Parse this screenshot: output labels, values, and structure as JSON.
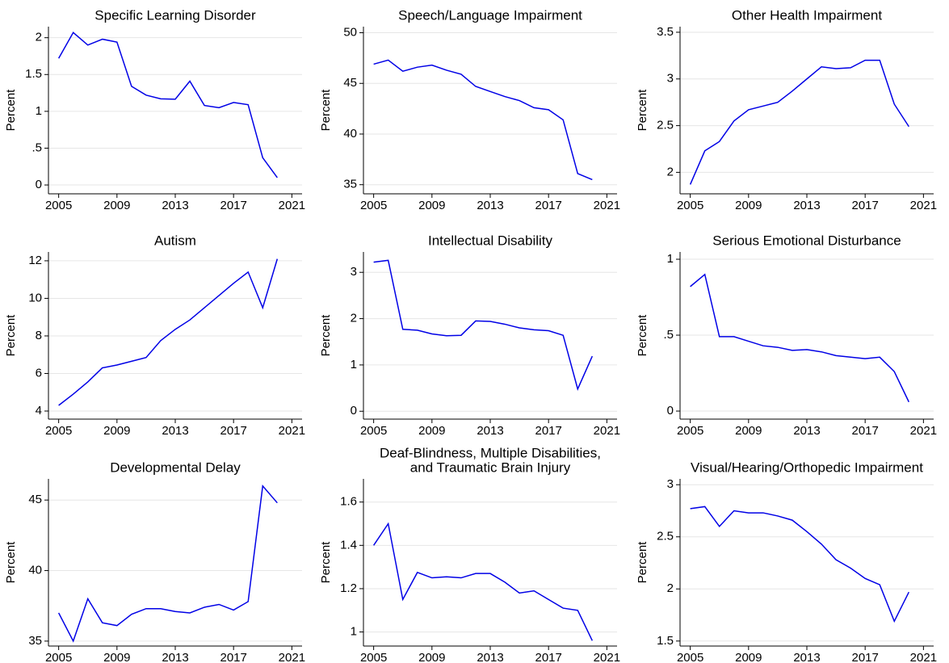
{
  "chart_data": [
    {
      "type": "line",
      "title": "Specific Learning Disorder",
      "ylabel": "Percent",
      "x": [
        2005,
        2006,
        2007,
        2008,
        2009,
        2010,
        2011,
        2012,
        2013,
        2014,
        2015,
        2016,
        2017,
        2018,
        2019,
        2020
      ],
      "series": [
        {
          "color": "#0000e6",
          "values": [
            1.72,
            2.07,
            1.9,
            1.98,
            1.94,
            1.34,
            1.22,
            1.17,
            1.165,
            1.41,
            1.08,
            1.05,
            1.12,
            1.09,
            0.37,
            0.1
          ]
        }
      ],
      "xlim": [
        2004.3,
        2021.7
      ],
      "xticks": [
        2005,
        2009,
        2013,
        2017,
        2021
      ],
      "ylim": [
        -0.12,
        2.15
      ],
      "yticks": [
        0,
        {
          "value": 0.5,
          "label": ".5"
        },
        1,
        1.5,
        2
      ],
      "grid": true
    },
    {
      "type": "line",
      "title": "Speech/Language Impairment",
      "ylabel": "Percent",
      "x": [
        2005,
        2006,
        2007,
        2008,
        2009,
        2010,
        2011,
        2012,
        2013,
        2014,
        2015,
        2016,
        2017,
        2018,
        2019,
        2020
      ],
      "series": [
        {
          "color": "#0000e6",
          "values": [
            46.9,
            47.3,
            46.2,
            46.6,
            46.8,
            46.3,
            45.9,
            44.7,
            44.2,
            43.7,
            43.3,
            42.6,
            42.4,
            41.4,
            36.1,
            35.5
          ]
        }
      ],
      "xlim": [
        2004.3,
        2021.7
      ],
      "xticks": [
        2005,
        2009,
        2013,
        2017,
        2021
      ],
      "ylim": [
        34.1,
        50.6
      ],
      "yticks": [
        35,
        40,
        45,
        50
      ],
      "grid": true
    },
    {
      "type": "line",
      "title": "Other Health Impairment",
      "ylabel": "Percent",
      "x": [
        2005,
        2006,
        2007,
        2008,
        2009,
        2010,
        2011,
        2012,
        2013,
        2014,
        2015,
        2016,
        2017,
        2018,
        2019,
        2020
      ],
      "series": [
        {
          "color": "#0000e6",
          "values": [
            1.87,
            2.23,
            2.33,
            2.55,
            2.67,
            2.71,
            2.75,
            2.87,
            3.0,
            3.13,
            3.11,
            3.12,
            3.2,
            3.2,
            2.73,
            2.49
          ]
        }
      ],
      "xlim": [
        2004.3,
        2021.7
      ],
      "xticks": [
        2005,
        2009,
        2013,
        2017,
        2021
      ],
      "ylim": [
        1.77,
        3.56
      ],
      "yticks": [
        2,
        2.5,
        3,
        3.5
      ],
      "grid": true
    },
    {
      "type": "line",
      "title": "Autism",
      "ylabel": "Percent",
      "x": [
        2005,
        2006,
        2007,
        2008,
        2009,
        2010,
        2011,
        2012,
        2013,
        2014,
        2015,
        2016,
        2017,
        2018,
        2019,
        2020
      ],
      "series": [
        {
          "color": "#0000e6",
          "values": [
            4.3,
            4.9,
            5.55,
            6.3,
            6.45,
            6.65,
            6.85,
            7.75,
            8.35,
            8.85,
            9.5,
            10.15,
            10.8,
            11.4,
            9.5,
            12.1
          ]
        }
      ],
      "xlim": [
        2004.3,
        2021.7
      ],
      "xticks": [
        2005,
        2009,
        2013,
        2017,
        2021
      ],
      "ylim": [
        3.57,
        12.47
      ],
      "yticks": [
        4,
        6,
        8,
        10,
        12
      ],
      "grid": true
    },
    {
      "type": "line",
      "title": "Intellectual Disability",
      "ylabel": "Percent",
      "x": [
        2005,
        2006,
        2007,
        2008,
        2009,
        2010,
        2011,
        2012,
        2013,
        2014,
        2015,
        2016,
        2017,
        2018,
        2019,
        2020
      ],
      "series": [
        {
          "color": "#0000e6",
          "values": [
            3.22,
            3.26,
            1.77,
            1.75,
            1.67,
            1.63,
            1.64,
            1.95,
            1.94,
            1.88,
            1.8,
            1.76,
            1.74,
            1.64,
            0.48,
            1.19
          ]
        }
      ],
      "xlim": [
        2004.3,
        2021.7
      ],
      "xticks": [
        2005,
        2009,
        2013,
        2017,
        2021
      ],
      "ylim": [
        -0.17,
        3.44
      ],
      "yticks": [
        0,
        1,
        2,
        3
      ],
      "grid": true
    },
    {
      "type": "line",
      "title": "Serious Emotional Disturbance",
      "ylabel": "Percent",
      "x": [
        2005,
        2006,
        2007,
        2008,
        2009,
        2010,
        2011,
        2012,
        2013,
        2014,
        2015,
        2016,
        2017,
        2018,
        2019,
        2020
      ],
      "series": [
        {
          "color": "#0000e6",
          "values": [
            0.82,
            0.9,
            0.49,
            0.49,
            0.46,
            0.43,
            0.42,
            0.4,
            0.405,
            0.39,
            0.365,
            0.355,
            0.345,
            0.355,
            0.26,
            0.06
          ]
        }
      ],
      "xlim": [
        2004.3,
        2021.7
      ],
      "xticks": [
        2005,
        2009,
        2013,
        2017,
        2021
      ],
      "ylim": [
        -0.053,
        1.048
      ],
      "yticks": [
        0,
        {
          "value": 0.5,
          "label": ".5"
        },
        1
      ],
      "grid": true
    },
    {
      "type": "line",
      "title": "Developmental Delay",
      "ylabel": "Percent",
      "x": [
        2005,
        2006,
        2007,
        2008,
        2009,
        2010,
        2011,
        2012,
        2013,
        2014,
        2015,
        2016,
        2017,
        2018,
        2019,
        2020
      ],
      "series": [
        {
          "color": "#0000e6",
          "values": [
            37,
            35,
            38,
            36.3,
            36.1,
            36.9,
            37.3,
            37.3,
            37.1,
            37,
            37.4,
            37.6,
            37.2,
            37.8,
            46,
            44.8
          ]
        }
      ],
      "xlim": [
        2004.3,
        2021.7
      ],
      "xticks": [
        2005,
        2009,
        2013,
        2017,
        2021
      ],
      "ylim": [
        34.65,
        46.5
      ],
      "yticks": [
        35,
        40,
        45
      ],
      "grid": true
    },
    {
      "type": "line",
      "title": [
        "Deaf-Blindness, Multiple Disabilities,",
        "and Traumatic Brain Injury"
      ],
      "ylabel": "Percent",
      "x": [
        2005,
        2006,
        2007,
        2008,
        2009,
        2010,
        2011,
        2012,
        2013,
        2014,
        2015,
        2016,
        2017,
        2018,
        2019,
        2020
      ],
      "series": [
        {
          "color": "#0000e6",
          "values": [
            1.4,
            1.5,
            1.15,
            1.275,
            1.25,
            1.255,
            1.25,
            1.27,
            1.27,
            1.23,
            1.18,
            1.19,
            1.15,
            1.11,
            1.1,
            0.96
          ]
        }
      ],
      "xlim": [
        2004.3,
        2021.7
      ],
      "xticks": [
        2005,
        2009,
        2013,
        2017,
        2021
      ],
      "ylim": [
        0.935,
        1.707
      ],
      "yticks": [
        1,
        1.2,
        1.4,
        1.6
      ],
      "grid": true
    },
    {
      "type": "line",
      "title": "Visual/Hearing/Orthopedic Impairment",
      "ylabel": "Percent",
      "x": [
        2005,
        2006,
        2007,
        2008,
        2009,
        2010,
        2011,
        2012,
        2013,
        2014,
        2015,
        2016,
        2017,
        2018,
        2019,
        2020
      ],
      "series": [
        {
          "color": "#0000e6",
          "values": [
            2.77,
            2.79,
            2.6,
            2.75,
            2.73,
            2.73,
            2.7,
            2.66,
            2.55,
            2.43,
            2.28,
            2.2,
            2.1,
            2.04,
            1.69,
            1.97
          ]
        }
      ],
      "xlim": [
        2004.3,
        2021.7
      ],
      "xticks": [
        2005,
        2009,
        2013,
        2017,
        2021
      ],
      "ylim": [
        1.452,
        3.056
      ],
      "yticks": [
        1.5,
        2,
        2.5,
        3
      ],
      "grid": true
    }
  ]
}
